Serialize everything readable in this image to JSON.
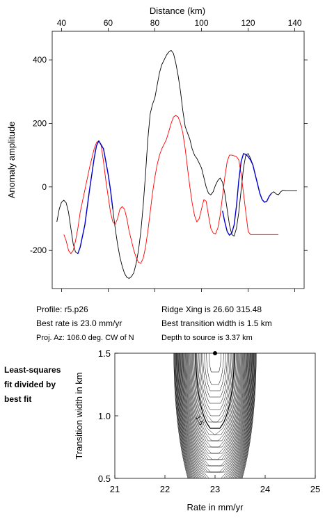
{
  "chart_data": [
    {
      "type": "line",
      "title": "",
      "xlabel": "Distance (km)",
      "ylabel": "Anomaly amplitude",
      "xlim": [
        36,
        144
      ],
      "ylim": [
        -320,
        490
      ],
      "x_ticks": [
        40,
        60,
        80,
        100,
        120,
        140
      ],
      "y_ticks": [
        -200,
        0,
        200,
        400
      ],
      "grid": false,
      "series": [
        {
          "color": "#000000",
          "x": [
            38,
            39,
            40,
            41,
            42,
            43,
            44,
            45,
            46,
            47,
            48,
            50,
            52,
            54,
            55,
            56,
            58,
            59,
            60,
            61,
            62,
            63,
            64,
            65,
            66,
            67,
            68,
            69,
            70,
            71,
            72,
            73,
            74,
            75,
            76,
            77,
            78,
            79,
            80,
            81,
            82,
            83,
            84,
            85,
            86,
            87,
            88,
            89,
            90,
            91,
            92,
            93,
            94,
            95,
            96,
            97,
            98,
            99,
            100,
            101,
            102,
            103,
            104,
            105,
            106,
            107,
            108,
            109,
            110,
            111,
            112,
            113,
            114,
            115,
            116,
            117,
            118,
            119,
            120,
            121,
            122,
            123,
            124,
            125,
            126,
            127,
            128,
            129,
            130,
            131,
            132,
            133,
            134,
            135,
            136,
            137,
            138,
            139,
            140,
            141
          ],
          "y": [
            -110,
            -70,
            -48,
            -42,
            -50,
            -80,
            -130,
            -180,
            -205,
            -210,
            -190,
            -120,
            -10,
            90,
            130,
            145,
            120,
            80,
            40,
            -10,
            -70,
            -130,
            -180,
            -220,
            -250,
            -272,
            -285,
            -288,
            -282,
            -270,
            -240,
            -200,
            -140,
            -60,
            40,
            150,
            230,
            260,
            280,
            320,
            360,
            385,
            400,
            415,
            425,
            430,
            420,
            390,
            350,
            300,
            240,
            190,
            170,
            150,
            120,
            100,
            90,
            75,
            60,
            30,
            0,
            -20,
            -25,
            -15,
            5,
            20,
            28,
            15,
            -20,
            -70,
            -120,
            -150,
            -155,
            -130,
            -80,
            -10,
            60,
            100,
            105,
            90,
            70,
            40,
            10,
            -20,
            -40,
            -48,
            -45,
            -30,
            -20,
            -15,
            -22,
            -25,
            -15,
            -10,
            -12,
            -12,
            -12,
            -12,
            -12,
            -12
          ]
        },
        {
          "color": "#ff0000",
          "x": [
            41,
            42,
            43,
            44,
            45,
            46,
            47,
            48,
            50,
            52,
            54,
            55,
            56,
            57,
            58,
            59,
            60,
            61,
            62,
            63,
            64,
            65,
            66,
            67,
            68,
            69,
            70,
            71,
            72,
            73,
            74,
            75,
            76,
            77,
            78,
            79,
            80,
            81,
            82,
            83,
            84,
            85,
            86,
            87,
            88,
            89,
            90,
            91,
            92,
            93,
            94,
            95,
            96,
            97,
            98,
            99,
            100,
            101,
            102,
            103,
            104,
            105,
            106,
            107,
            108,
            109,
            110,
            111,
            112,
            113,
            114,
            115,
            116,
            117,
            118,
            119,
            120,
            121,
            122,
            123,
            124,
            125,
            126,
            127,
            128,
            129,
            130,
            131,
            132,
            133
          ],
          "y": [
            -150,
            -170,
            -200,
            -210,
            -200,
            -170,
            -130,
            -80,
            -10,
            60,
            120,
            140,
            145,
            130,
            80,
            20,
            -30,
            -80,
            -110,
            -118,
            -100,
            -70,
            -62,
            -70,
            -100,
            -140,
            -170,
            -200,
            -222,
            -238,
            -240,
            -225,
            -190,
            -140,
            -80,
            -20,
            30,
            70,
            100,
            120,
            135,
            150,
            175,
            200,
            220,
            225,
            220,
            200,
            170,
            120,
            60,
            0,
            -50,
            -90,
            -110,
            -100,
            -70,
            -40,
            -45,
            -90,
            -130,
            -145,
            -148,
            -130,
            -90,
            -30,
            30,
            80,
            100,
            100,
            98,
            95,
            85,
            40,
            -20,
            -80,
            -140,
            -150,
            -150,
            -150,
            -150,
            -150,
            -150,
            -150,
            -150,
            -150,
            -150,
            -150,
            -150,
            -150
          ]
        },
        {
          "color": "#0000cc",
          "x": [
            47,
            48,
            50,
            52,
            54,
            55,
            56,
            58,
            59,
            60,
            61,
            62
          ],
          "y": [
            -210,
            -190,
            -120,
            -10,
            90,
            130,
            145,
            120,
            80,
            40,
            -10,
            -70
          ]
        },
        {
          "color": "#0000cc",
          "x": [
            109,
            110,
            111,
            112,
            113,
            114,
            115,
            116,
            117,
            118,
            119,
            120,
            121,
            122,
            123,
            124,
            125,
            126,
            127,
            128,
            129,
            130
          ],
          "y": [
            -75,
            -110,
            -140,
            -152,
            -145,
            -120,
            -60,
            20,
            80,
            105,
            102,
            95,
            85,
            70,
            40,
            10,
            -20,
            -40,
            -48,
            -45,
            -30,
            -20
          ]
        }
      ]
    },
    {
      "type": "contour",
      "title": "",
      "xlabel": "Rate in mm/yr",
      "ylabel": "Transition width in km",
      "xlim": [
        21,
        25
      ],
      "ylim": [
        0.5,
        1.5
      ],
      "x_ticks": [
        21,
        22,
        23,
        24,
        25
      ],
      "y_ticks": [
        0.5,
        1.0,
        1.5
      ],
      "x_tick_labels": [
        "21",
        "22",
        "23",
        "24",
        "25"
      ],
      "y_tick_labels": [
        "0.5",
        "1.0",
        "1.5"
      ],
      "best_fit": {
        "rate": 23.0,
        "width": 1.5
      },
      "contour_label": "1.5",
      "grid": false
    }
  ],
  "info": {
    "profile": "Profile: r5.p26",
    "best_rate": "Best rate is 23.0 mm/yr",
    "proj_az": "Proj. Az: 106.0 deg. CW of N",
    "ridge_xing": "Ridge Xing is 26.60 315.48",
    "best_width": "Best transition width is 1.5 km",
    "depth": "Depth to source is   3.37 km"
  },
  "side_note": [
    "Least-squares",
    "fit divided by",
    "best fit"
  ]
}
